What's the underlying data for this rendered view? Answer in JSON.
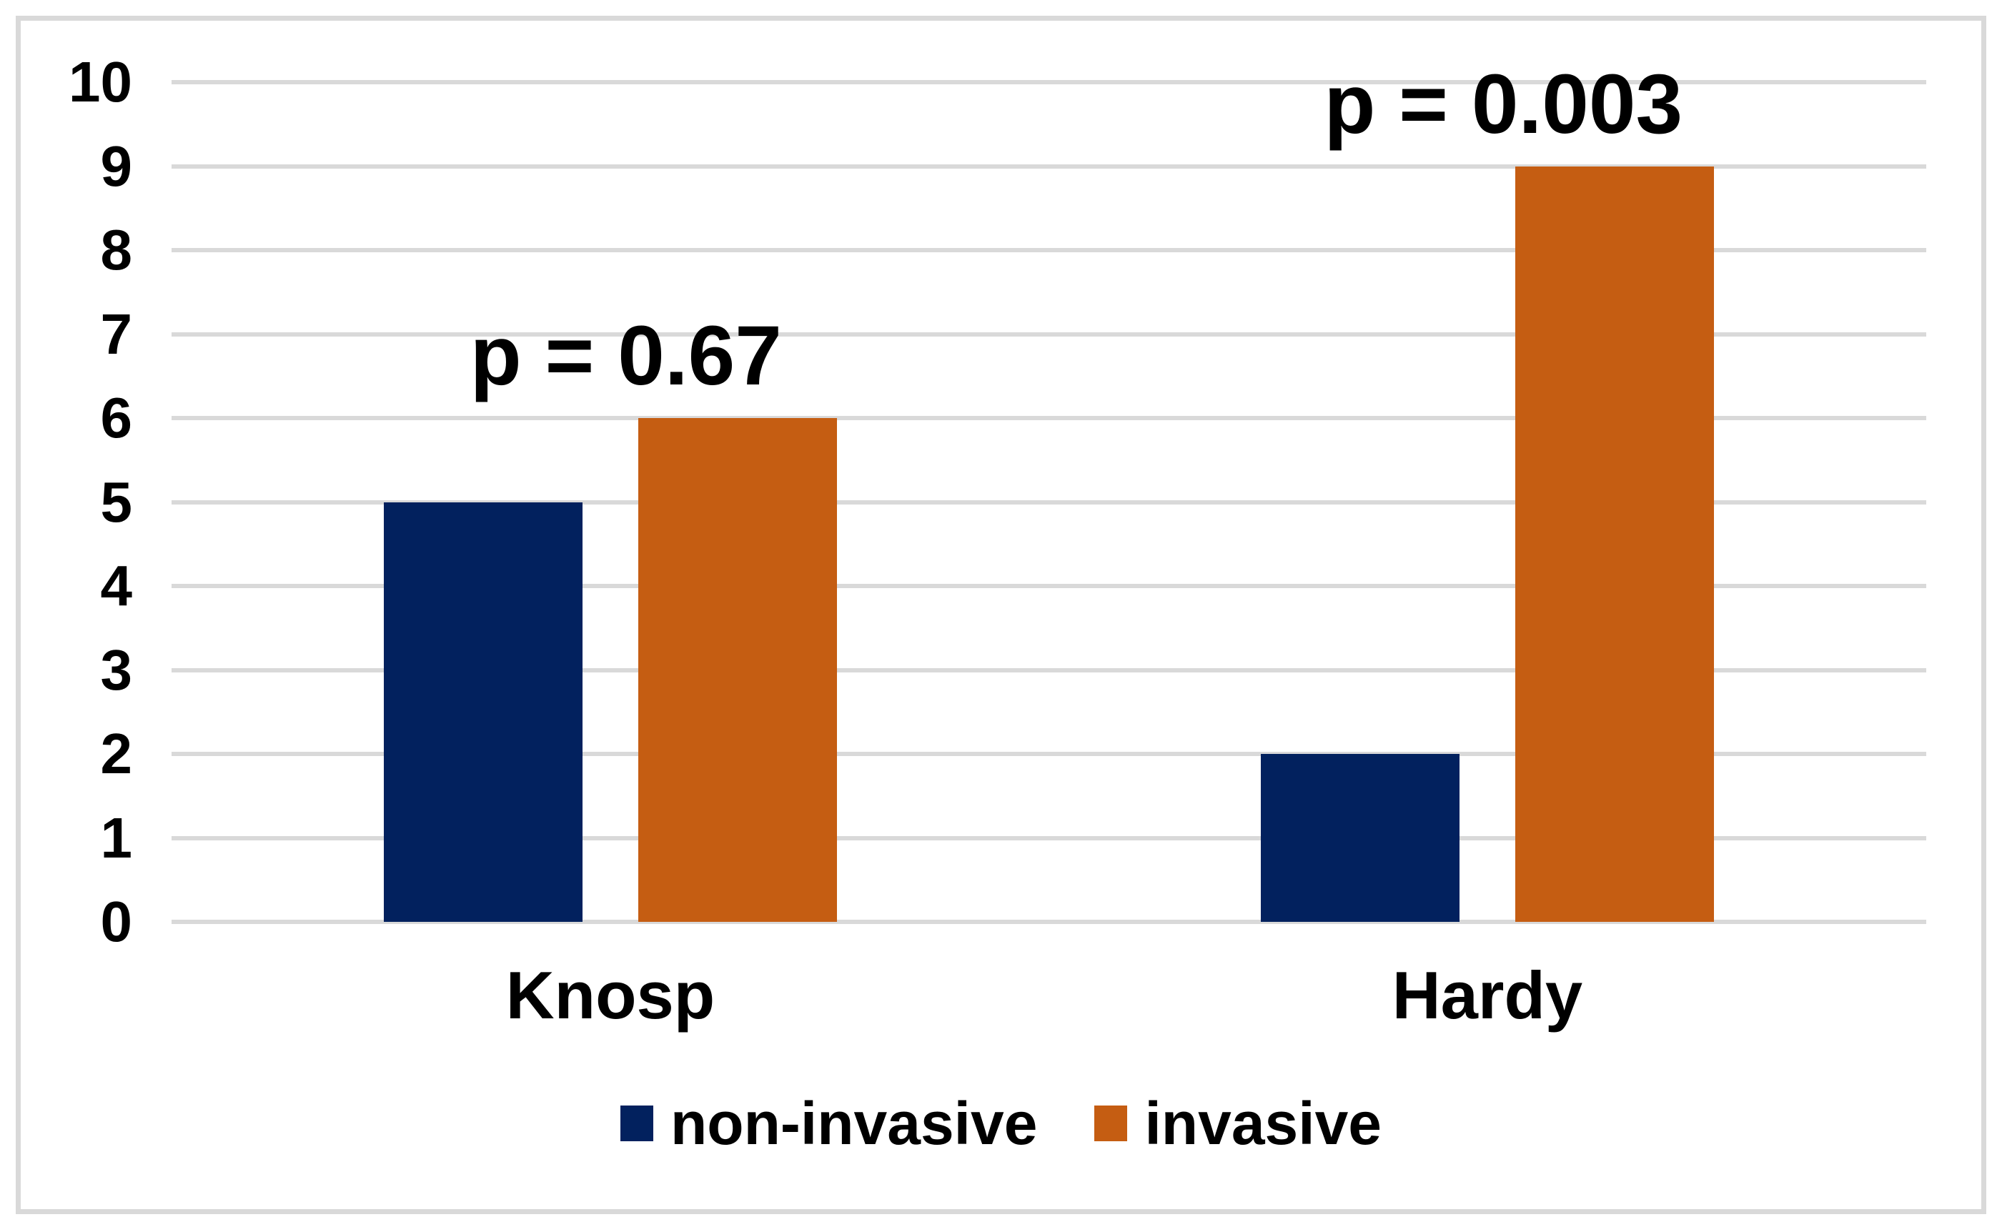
{
  "chart_data": {
    "type": "bar",
    "title": "",
    "xlabel": "",
    "ylabel": "",
    "categories": [
      "Knosp",
      "Hardy"
    ],
    "series": [
      {
        "name": "non-invasive",
        "color": "#02215E",
        "values": [
          5,
          2
        ]
      },
      {
        "name": "invasive",
        "color": "#C55D12",
        "values": [
          6,
          9
        ]
      }
    ],
    "annotations": [
      {
        "text": "p = 0.67",
        "category": "Knosp"
      },
      {
        "text": "p = 0.003",
        "category": "Hardy"
      }
    ],
    "y_axis": {
      "min": 0,
      "max": 10,
      "step": 1,
      "tick_labels": [
        "0",
        "1",
        "2",
        "3",
        "4",
        "5",
        "6",
        "7",
        "8",
        "9",
        "10"
      ]
    },
    "grid": "horizontal",
    "legend_position": "bottom",
    "colors": {
      "gridline": "#D9D9D9",
      "frame_border": "#D9D9D9",
      "text": "#000000",
      "background": "#FFFFFF"
    }
  }
}
